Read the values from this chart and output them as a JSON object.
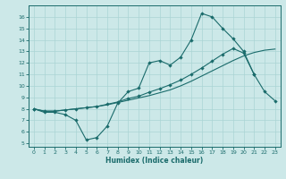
{
  "title": "",
  "xlabel": "Humidex (Indice chaleur)",
  "bg_color": "#cce8e8",
  "line_color": "#1a6b6b",
  "grid_color": "#aad4d4",
  "xlim": [
    -0.5,
    23.5
  ],
  "ylim": [
    4.7,
    17.0
  ],
  "yticks": [
    5,
    6,
    7,
    8,
    9,
    10,
    11,
    12,
    13,
    14,
    15,
    16
  ],
  "xticks": [
    0,
    1,
    2,
    3,
    4,
    5,
    6,
    7,
    8,
    9,
    10,
    11,
    12,
    13,
    14,
    15,
    16,
    17,
    18,
    19,
    20,
    21,
    22,
    23
  ],
  "line1_x": [
    0,
    1,
    2,
    3,
    4,
    5,
    6,
    7,
    8,
    9,
    10,
    11,
    12,
    13,
    14,
    15,
    16,
    17,
    18,
    19,
    20,
    21
  ],
  "line1_y": [
    8.0,
    7.7,
    7.7,
    7.5,
    7.0,
    5.3,
    5.5,
    6.5,
    8.5,
    9.5,
    9.8,
    12.0,
    12.2,
    11.8,
    12.5,
    14.0,
    16.3,
    16.0,
    15.0,
    14.1,
    13.0,
    11.0
  ],
  "line2_x": [
    0,
    1,
    2,
    3,
    4,
    5,
    6,
    7,
    8,
    9,
    10,
    11,
    12,
    13,
    14,
    15,
    16,
    17,
    18,
    19,
    20,
    21,
    22,
    23
  ],
  "line2_y": [
    8.0,
    7.8,
    7.8,
    7.9,
    8.0,
    8.1,
    8.2,
    8.35,
    8.55,
    8.75,
    8.95,
    9.15,
    9.4,
    9.65,
    10.0,
    10.4,
    10.85,
    11.3,
    11.75,
    12.2,
    12.6,
    12.9,
    13.1,
    13.2
  ],
  "line3_x": [
    0,
    1,
    2,
    3,
    4,
    5,
    6,
    7,
    8,
    9,
    10,
    11,
    12,
    13,
    14,
    15,
    16,
    17,
    18,
    19,
    20,
    21,
    22,
    23
  ],
  "line3_y": [
    8.0,
    7.8,
    7.8,
    7.9,
    8.0,
    8.1,
    8.2,
    8.4,
    8.6,
    8.9,
    9.1,
    9.45,
    9.75,
    10.1,
    10.5,
    11.0,
    11.55,
    12.15,
    12.75,
    13.25,
    12.85,
    11.0,
    9.5,
    8.7
  ]
}
